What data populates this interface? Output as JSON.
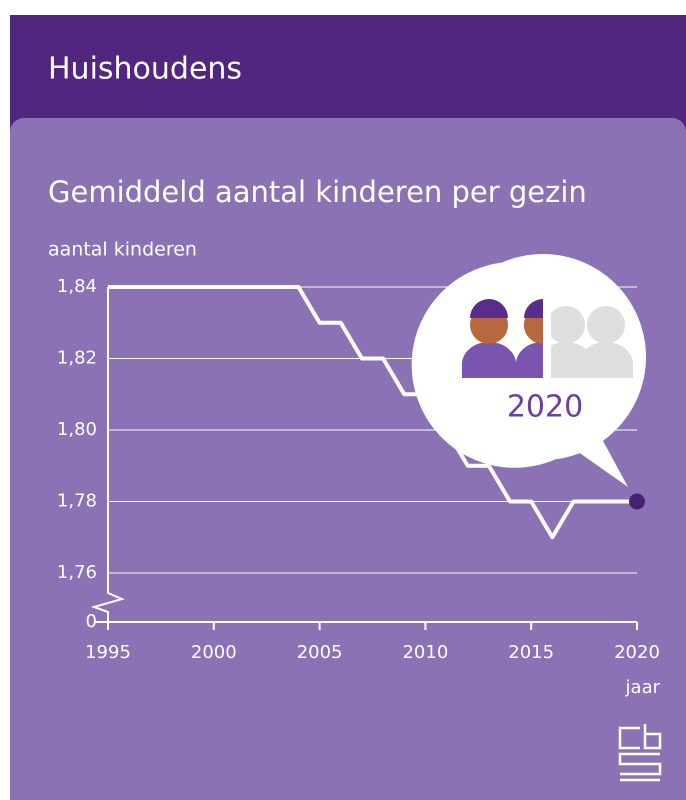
{
  "header": {
    "title": "Huishoudens"
  },
  "chart_data": {
    "type": "line",
    "title": "Gemiddeld aantal kinderen per gezin",
    "y_label": "aantal kinderen",
    "x_label": "jaar",
    "x": [
      1995,
      1996,
      1997,
      1998,
      1999,
      2000,
      2001,
      2002,
      2003,
      2004,
      2005,
      2006,
      2007,
      2008,
      2009,
      2010,
      2011,
      2012,
      2013,
      2014,
      2015,
      2016,
      2017,
      2018,
      2019,
      2020
    ],
    "values": [
      1.84,
      1.84,
      1.84,
      1.84,
      1.84,
      1.84,
      1.84,
      1.84,
      1.84,
      1.84,
      1.83,
      1.83,
      1.82,
      1.82,
      1.81,
      1.81,
      1.8,
      1.79,
      1.79,
      1.78,
      1.78,
      1.77,
      1.78,
      1.78,
      1.78,
      1.78
    ],
    "color": "#ffffff",
    "xlim": [
      1995,
      2020
    ],
    "xticks": [
      1995,
      2000,
      2005,
      2010,
      2015,
      2020
    ],
    "ylim": [
      1.76,
      1.84
    ],
    "yticks": [
      0,
      {
        "value": 1.76,
        "label": "1,76"
      },
      {
        "value": 1.78,
        "label": "1,78"
      },
      {
        "value": 1.8,
        "label": "1,80"
      },
      {
        "value": 1.82,
        "label": "1,82"
      },
      {
        "value": 1.84,
        "label": "1,84"
      }
    ],
    "axis_break": true,
    "grid": true,
    "highlight": {
      "label": "2020",
      "index": 25,
      "color": "#4b2070"
    }
  }
}
